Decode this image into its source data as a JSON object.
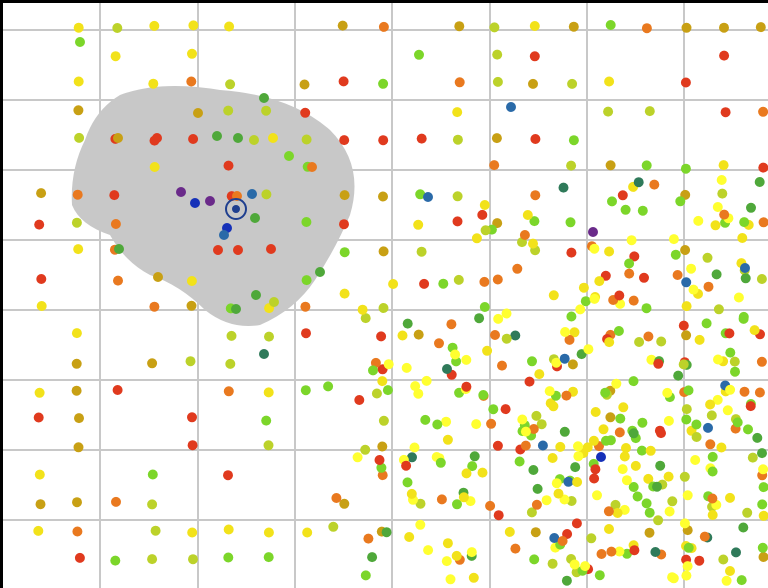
{
  "map": {
    "grid": true,
    "colors": {
      "gridline": "#c8c8c8",
      "frame": "#000000",
      "region_fill": "#c8c8c8",
      "selected_marker_ring": "#1f3f8f",
      "selected_marker_center": "#1f3f8f"
    },
    "icons": {
      "selected_marker": "target-ring-icon"
    },
    "point_palette": [
      "#e03a1e",
      "#e9791f",
      "#c8a014",
      "#f2e21a",
      "#ffff30",
      "#bcd22a",
      "#7cd62a",
      "#4fa83a",
      "#2f7a5a",
      "#2a6aa8",
      "#1530b8",
      "#6a2a8a"
    ]
  }
}
